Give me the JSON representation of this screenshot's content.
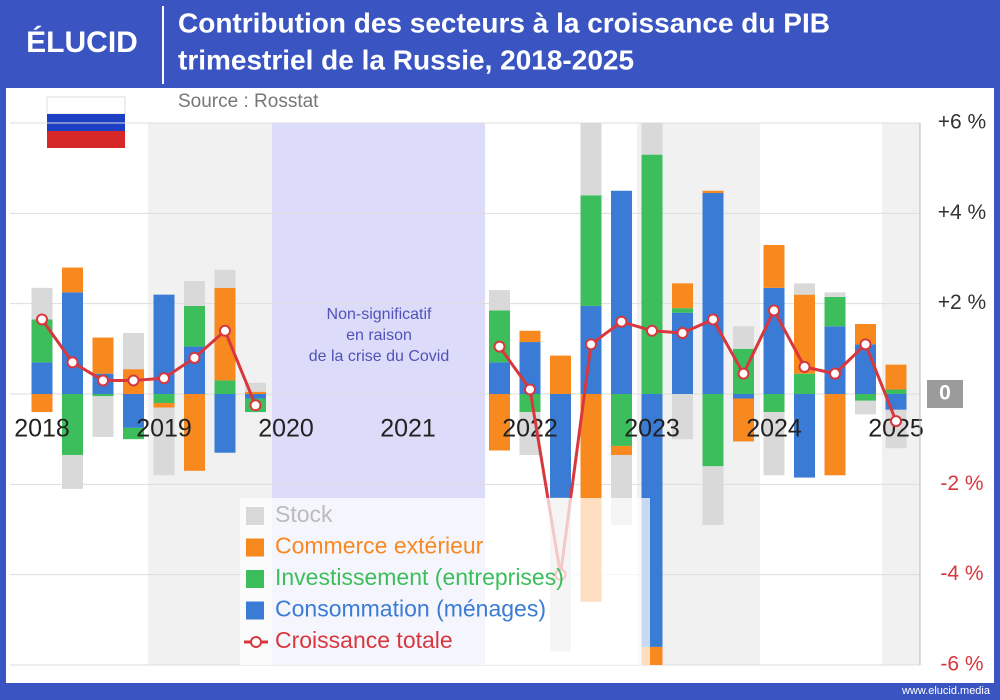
{
  "logo": "ÉLUCID",
  "footer": "www.elucid.media",
  "chart_data": {
    "type": "bar",
    "stacked": true,
    "title": [
      "Contribution des secteurs à la croissance du PIB",
      "trimestriel de la Russie, 2018-2025"
    ],
    "subtitle": "Source : Rosstat",
    "annotation": [
      "Non-significatif",
      "en raison",
      "de la crise du Covid"
    ],
    "categories": [
      "2018",
      null,
      null,
      null,
      "2019",
      null,
      null,
      null,
      "2020",
      null,
      null,
      null,
      "2021",
      null,
      null,
      null,
      "2022",
      null,
      null,
      null,
      "2023",
      null,
      null,
      null,
      "2024",
      null,
      null,
      null,
      "2025"
    ],
    "series": [
      {
        "name": "Stock",
        "color": "#d9d9d9",
        "values": [
          0.7,
          -0.75,
          -0.9,
          0.8,
          -1.5,
          0.55,
          0.4,
          0.2,
          null,
          null,
          null,
          null,
          null,
          null,
          null,
          0.45,
          -0.95,
          -3.4,
          1.8,
          -1.55,
          0.9,
          -1.0,
          -1.3,
          0.5,
          -1.4,
          0.25,
          0.1,
          -0.3,
          -0.85
        ]
      },
      {
        "name": "Commerce extérieur",
        "color": "#f7891f",
        "values": [
          -0.4,
          0.55,
          0.8,
          0.55,
          -0.1,
          -1.7,
          2.05,
          0.05,
          null,
          null,
          null,
          null,
          null,
          null,
          null,
          -1.25,
          0.25,
          0.85,
          -4.6,
          -0.2,
          -0.5,
          0.55,
          0.05,
          -0.95,
          0.95,
          1.75,
          -1.8,
          0.45,
          0.55
        ]
      },
      {
        "name": "Investissement (entreprises)",
        "color": "#3dbe5c",
        "values": [
          0.95,
          -1.35,
          -0.05,
          -0.25,
          -0.2,
          0.9,
          0.3,
          -0.3,
          null,
          null,
          null,
          null,
          null,
          null,
          null,
          1.15,
          -0.4,
          0,
          2.45,
          -1.15,
          5.3,
          0.1,
          -1.6,
          1.0,
          -0.4,
          0.45,
          0.65,
          -0.15,
          0.1
        ]
      },
      {
        "name": "Consommation (ménages)",
        "color": "#3a7bd5",
        "values": [
          0.7,
          2.25,
          0.45,
          -0.75,
          2.2,
          1.05,
          -1.3,
          -0.1,
          null,
          null,
          null,
          null,
          null,
          null,
          null,
          0.7,
          1.15,
          -2.3,
          1.95,
          4.5,
          -5.6,
          1.8,
          4.45,
          -0.1,
          2.35,
          -1.85,
          1.5,
          1.1,
          -0.35
        ]
      },
      {
        "name": "Croissance totale",
        "color": "#d7373d",
        "type": "line",
        "values": [
          1.65,
          0.7,
          0.3,
          0.3,
          0.35,
          0.8,
          1.4,
          -0.25,
          null,
          null,
          null,
          null,
          null,
          null,
          null,
          1.05,
          0.1,
          -4.0,
          1.1,
          1.6,
          1.4,
          1.35,
          1.65,
          0.45,
          1.85,
          0.6,
          0.45,
          1.1,
          -0.6
        ]
      }
    ],
    "ylim": [
      -6,
      6
    ],
    "yticks": [
      {
        "value": 6,
        "label": "+6 %"
      },
      {
        "value": 4,
        "label": "+4 %"
      },
      {
        "value": 2,
        "label": "+2 %"
      },
      0,
      {
        "value": -2,
        "label": "-2 %"
      },
      {
        "value": -4,
        "label": "-4 %"
      },
      {
        "value": -6,
        "label": "-6 %"
      }
    ],
    "grid": true
  }
}
